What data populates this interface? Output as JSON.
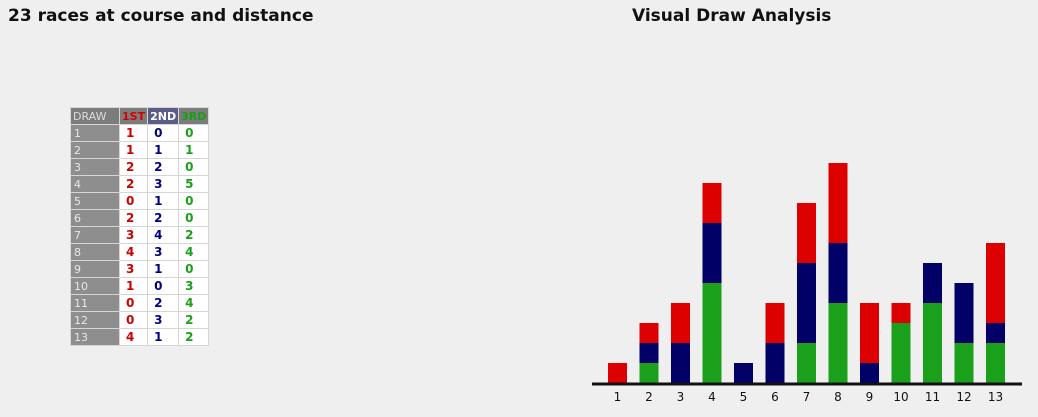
{
  "page": {
    "left_title": "23 races at course and distance",
    "right_title": "Visual Draw Analysis"
  },
  "table": {
    "headers": {
      "draw": "DRAW",
      "first": "1ST",
      "second": "2ND",
      "third": "3RD"
    },
    "rows": [
      {
        "draw": "1",
        "first": "1",
        "second": "0",
        "third": "0"
      },
      {
        "draw": "2",
        "first": "1",
        "second": "1",
        "third": "1"
      },
      {
        "draw": "3",
        "first": "2",
        "second": "2",
        "third": "0"
      },
      {
        "draw": "4",
        "first": "2",
        "second": "3",
        "third": "5"
      },
      {
        "draw": "5",
        "first": "0",
        "second": "1",
        "third": "0"
      },
      {
        "draw": "6",
        "first": "2",
        "second": "2",
        "third": "0"
      },
      {
        "draw": "7",
        "first": "3",
        "second": "4",
        "third": "2"
      },
      {
        "draw": "8",
        "first": "4",
        "second": "3",
        "third": "4"
      },
      {
        "draw": "9",
        "first": "3",
        "second": "1",
        "third": "0"
      },
      {
        "draw": "10",
        "first": "1",
        "second": "0",
        "third": "3"
      },
      {
        "draw": "11",
        "first": "0",
        "second": "2",
        "third": "4"
      },
      {
        "draw": "12",
        "first": "0",
        "second": "3",
        "third": "2"
      },
      {
        "draw": "13",
        "first": "4",
        "second": "1",
        "third": "2"
      }
    ]
  },
  "colors": {
    "first": "#dd0000",
    "second": "#000066",
    "third": "#1aa01a",
    "axis": "#111111"
  },
  "chart_data": {
    "type": "bar",
    "stacked": true,
    "title": "Visual Draw Analysis",
    "categories": [
      "1",
      "2",
      "3",
      "4",
      "5",
      "6",
      "7",
      "8",
      "9",
      "10",
      "11",
      "12",
      "13"
    ],
    "series": [
      {
        "name": "3RD",
        "color": "#1aa01a",
        "values": [
          0,
          1,
          0,
          5,
          0,
          0,
          2,
          4,
          0,
          3,
          4,
          2,
          2
        ]
      },
      {
        "name": "2ND",
        "color": "#000066",
        "values": [
          0,
          1,
          2,
          3,
          1,
          2,
          4,
          3,
          1,
          0,
          2,
          3,
          1
        ]
      },
      {
        "name": "1ST",
        "color": "#dd0000",
        "values": [
          1,
          1,
          2,
          2,
          0,
          2,
          3,
          4,
          3,
          1,
          0,
          0,
          4
        ]
      }
    ],
    "ylim": [
      0,
      11
    ],
    "grid": false,
    "legend": "none",
    "xlabel": "",
    "ylabel": ""
  }
}
